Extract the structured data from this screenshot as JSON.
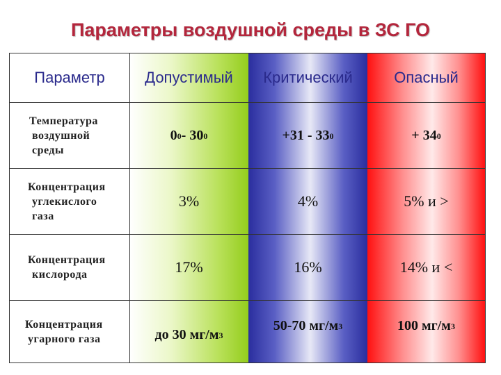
{
  "title": "Параметры воздушной среды в ЗС ГО",
  "headers": [
    "Параметр",
    "Допустимый",
    "Критический",
    "Опасный"
  ],
  "rows": [
    {
      "label": [
        "Температура",
        "воздушной",
        "среды"
      ],
      "allow": {
        "main": "0",
        "sup": "0",
        "main2": " - 30",
        "sup2": "0"
      },
      "crit": {
        "main": "+31 - 33",
        "sup": "0"
      },
      "danger": {
        "main": "+ 34",
        "sup": "0"
      }
    },
    {
      "label": [
        "Концентрация",
        "углекислого",
        "газа"
      ],
      "allow": "3%",
      "crit": "4%",
      "danger": "5% и >"
    },
    {
      "label": [
        "Концентрация",
        "кислорода"
      ],
      "allow": "17%",
      "crit": "16%",
      "danger": "14% и <"
    },
    {
      "label": [
        "Концентрация",
        "угарного газа"
      ],
      "allow": {
        "main": "до 30 мг/м",
        "sup": "3"
      },
      "crit": {
        "main": "50-70 мг/м",
        "sup": "3"
      },
      "danger": {
        "main": "100 мг/м",
        "sup": "3"
      }
    }
  ]
}
